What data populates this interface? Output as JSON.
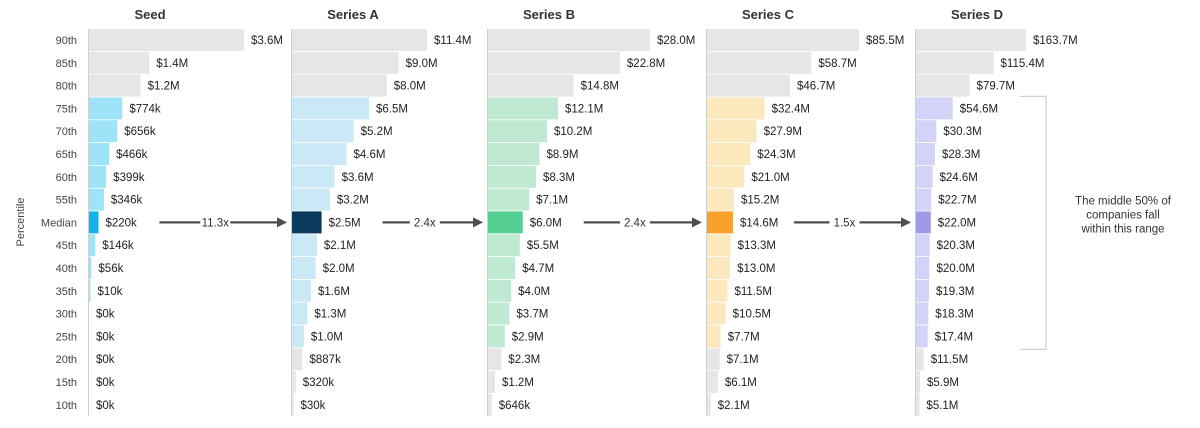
{
  "chart_data": {
    "type": "bar",
    "ylabel": "Percentile",
    "percentiles": [
      "90th",
      "85th",
      "80th",
      "75th",
      "70th",
      "65th",
      "60th",
      "55th",
      "Median",
      "45th",
      "40th",
      "35th",
      "30th",
      "25th",
      "20th",
      "15th",
      "10th"
    ],
    "series": [
      {
        "name": "Seed",
        "values": [
          3.6,
          1.4,
          1.2,
          0.774,
          0.656,
          0.466,
          0.399,
          0.346,
          0.22,
          0.146,
          0.056,
          0.01,
          0,
          0,
          0,
          0,
          0
        ],
        "labels": [
          "$3.6M",
          "$1.4M",
          "$1.2M",
          "$774k",
          "$656k",
          "$466k",
          "$399k",
          "$346k",
          "$220k",
          "$146k",
          "$56k",
          "$10k",
          "$0k",
          "$0k",
          "$0k",
          "$0k",
          "$0k"
        ],
        "colors": {
          "outer": "#e6e6e6",
          "middle": "#9fe3f8",
          "median": "#11b3ea"
        },
        "multiplier": "11.3x"
      },
      {
        "name": "Series A",
        "values": [
          11.4,
          9.0,
          8.0,
          6.5,
          5.2,
          4.6,
          3.6,
          3.2,
          2.5,
          2.1,
          2.0,
          1.6,
          1.3,
          1.0,
          0.887,
          0.32,
          0.03
        ],
        "labels": [
          "$11.4M",
          "$9.0M",
          "$8.0M",
          "$6.5M",
          "$5.2M",
          "$4.6M",
          "$3.6M",
          "$3.2M",
          "$2.5M",
          "$2.1M",
          "$2.0M",
          "$1.6M",
          "$1.3M",
          "$1.0M",
          "$887k",
          "$320k",
          "$30k"
        ],
        "colors": {
          "outer": "#e6e6e6",
          "middle": "#cbe8f6",
          "median": "#0c3a5e"
        },
        "multiplier": "2.4x"
      },
      {
        "name": "Series B",
        "values": [
          28.0,
          22.8,
          14.8,
          12.1,
          10.2,
          8.9,
          8.3,
          7.1,
          6.0,
          5.5,
          4.7,
          4.0,
          3.7,
          2.9,
          2.3,
          1.2,
          0.646
        ],
        "labels": [
          "$28.0M",
          "$22.8M",
          "$14.8M",
          "$12.1M",
          "$10.2M",
          "$8.9M",
          "$8.3M",
          "$7.1M",
          "$6.0M",
          "$5.5M",
          "$4.7M",
          "$4.0M",
          "$3.7M",
          "$2.9M",
          "$2.3M",
          "$1.2M",
          "$646k"
        ],
        "colors": {
          "outer": "#e6e6e6",
          "middle": "#bfe9d3",
          "median": "#55cf92"
        },
        "multiplier": "2.4x"
      },
      {
        "name": "Series C",
        "values": [
          85.5,
          58.7,
          46.7,
          32.4,
          27.9,
          24.3,
          21.0,
          15.2,
          14.6,
          13.3,
          13.0,
          11.5,
          10.5,
          7.7,
          7.1,
          6.1,
          2.1
        ],
        "labels": [
          "$85.5M",
          "$58.7M",
          "$46.7M",
          "$32.4M",
          "$27.9M",
          "$24.3M",
          "$21.0M",
          "$15.2M",
          "$14.6M",
          "$13.3M",
          "$13.0M",
          "$11.5M",
          "$10.5M",
          "$7.7M",
          "$7.1M",
          "$6.1M",
          "$2.1M"
        ],
        "colors": {
          "outer": "#e6e6e6",
          "middle": "#fbe9bd",
          "median": "#f8a22a"
        },
        "multiplier": "1.5x"
      },
      {
        "name": "Series D",
        "values": [
          163.7,
          115.4,
          79.7,
          54.6,
          30.3,
          28.3,
          24.6,
          22.7,
          22.0,
          20.3,
          20.0,
          19.3,
          18.3,
          17.4,
          11.5,
          5.9,
          5.1
        ],
        "labels": [
          "$163.7M",
          "$115.4M",
          "$79.7M",
          "$54.6M",
          "$30.3M",
          "$28.3M",
          "$24.6M",
          "$22.7M",
          "$22.0M",
          "$20.3M",
          "$20.0M",
          "$19.3M",
          "$18.3M",
          "$17.4M",
          "$11.5M",
          "$5.9M",
          "$5.1M"
        ],
        "colors": {
          "outer": "#e6e6e6",
          "middle": "#d3d3f7",
          "median": "#9e9ae6"
        },
        "multiplier": ""
      }
    ],
    "middle_range": [
      "75th",
      "25th"
    ],
    "annotation_lines": [
      "The middle 50% of",
      "companies fall",
      "within this range"
    ],
    "arrow_color": "#4d4d4d"
  }
}
